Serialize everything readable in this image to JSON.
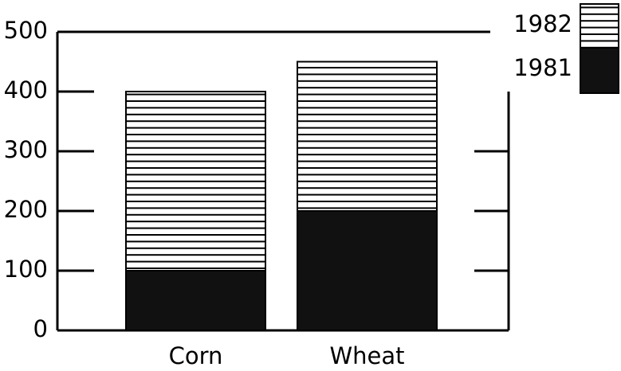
{
  "chart_data": {
    "type": "bar",
    "stacked": true,
    "categories": [
      "Corn",
      "Wheat"
    ],
    "series": [
      {
        "name": "1981",
        "color": "#111111",
        "values": [
          100,
          200
        ]
      },
      {
        "name": "1982",
        "color": "#ffffff",
        "hatch": "horizontal",
        "values": [
          300,
          250
        ]
      }
    ],
    "ylim": [
      0,
      500
    ],
    "yticks": [
      0,
      100,
      200,
      300,
      400,
      500
    ],
    "legend": "top-right"
  }
}
